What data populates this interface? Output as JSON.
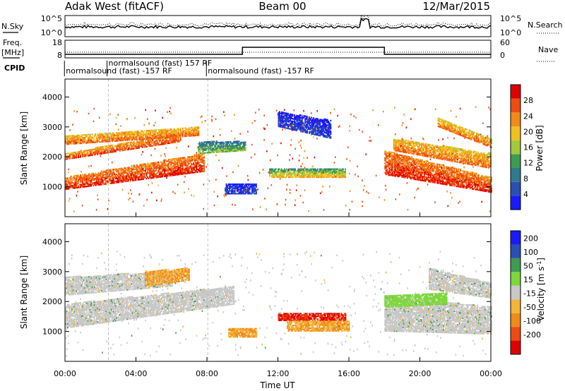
{
  "header": {
    "radar": "Adak West (fitACF)",
    "beam": "Beam 00",
    "date": "12/Mar/2015"
  },
  "noise_panel": {
    "left_label": "N.Sky",
    "right_label": "N.Search",
    "left_ticks": [
      "10^5",
      "10^0"
    ],
    "right_ticks": [
      "10^5",
      "10^0"
    ]
  },
  "freq_panel": {
    "left_label": "Freq.",
    "left_unit": "[MHz]",
    "right_label": "Nave",
    "left_ticks": [
      "18",
      "8"
    ],
    "right_ticks": [
      "60",
      "0"
    ],
    "freq_steps": [
      {
        "t": 0,
        "f": 10
      },
      {
        "t": 10,
        "f": 14
      },
      {
        "t": 18,
        "f": 10
      },
      {
        "t": 24,
        "f": 10
      }
    ]
  },
  "cpid": {
    "label": "CPID",
    "entries": [
      {
        "t": 0.05,
        "row": 2,
        "text": "normalsound (fast) -157 RF"
      },
      {
        "t": 2.45,
        "row": 1,
        "text": "normalsound (fast) 157 RF"
      },
      {
        "t": 8.05,
        "row": 2,
        "text": "normalsound (fast) -157 RF"
      }
    ]
  },
  "colors": {
    "power": [
      "#1a1aff",
      "#2a4fb5",
      "#2f7a8f",
      "#3e9c4f",
      "#a5c83b",
      "#f0c020",
      "#f28a1a",
      "#f04b10",
      "#e00000"
    ],
    "velocity": [
      "#e00000",
      "#f04b10",
      "#f28a1a",
      "#f3b437",
      "#c8c8c8",
      "#7dd83b",
      "#3e9c4f",
      "#2a4fb5",
      "#1a1aff"
    ],
    "grey": "#c8c8c8"
  },
  "chart_data": [
    {
      "type": "heatmap",
      "panel": "power",
      "ylabel": "Slant Range [km]",
      "ylim": [
        0,
        4600
      ],
      "y_ticks": [
        1000,
        2000,
        3000,
        4000
      ],
      "xlim": [
        0,
        24
      ],
      "x_ticks": [
        "00:00",
        "04:00",
        "08:00",
        "12:00",
        "16:00",
        "20:00",
        "00:00"
      ],
      "colorbar": {
        "label": "Power [dB]",
        "range": [
          0,
          32
        ],
        "ticks": [
          4,
          8,
          12,
          16,
          20,
          24,
          28
        ]
      },
      "bands": [
        {
          "t0": 0.0,
          "t1": 7.8,
          "r0a": 900,
          "r1a": 1300,
          "r0b": 1500,
          "r1b": 2100,
          "vmin": 22,
          "vmax": 32
        },
        {
          "t0": 0.0,
          "t1": 6.5,
          "r0a": 1900,
          "r1a": 2100,
          "r0b": 2500,
          "r1b": 2800,
          "vmin": 20,
          "vmax": 30
        },
        {
          "t0": 0.0,
          "t1": 7.5,
          "r0a": 2400,
          "r1a": 2700,
          "r0b": 2700,
          "r1b": 3000,
          "vmin": 18,
          "vmax": 28
        },
        {
          "t0": 7.5,
          "t1": 10.2,
          "r0a": 2100,
          "r1a": 2500,
          "r0b": 2200,
          "r1b": 2500,
          "vmin": 6,
          "vmax": 18
        },
        {
          "t0": 9.0,
          "t1": 10.8,
          "r0a": 750,
          "r1a": 1100,
          "r0b": 750,
          "r1b": 1100,
          "vmin": 2,
          "vmax": 8
        },
        {
          "t0": 11.5,
          "t1": 15.8,
          "r0a": 1300,
          "r1a": 1600,
          "r0b": 1300,
          "r1b": 1600,
          "vmin": 6,
          "vmax": 24
        },
        {
          "t0": 12.0,
          "t1": 15.0,
          "r0a": 3000,
          "r1a": 3500,
          "r0b": 2600,
          "r1b": 3200,
          "vmin": 2,
          "vmax": 8
        },
        {
          "t0": 18.0,
          "t1": 24.0,
          "r0a": 1400,
          "r1a": 2200,
          "r0b": 800,
          "r1b": 1300,
          "vmin": 22,
          "vmax": 32
        },
        {
          "t0": 18.5,
          "t1": 24.0,
          "r0a": 2200,
          "r1a": 2600,
          "r0b": 1600,
          "r1b": 2100,
          "vmin": 18,
          "vmax": 28
        },
        {
          "t0": 21.0,
          "t1": 24.0,
          "r0a": 3000,
          "r1a": 3300,
          "r0b": 2300,
          "r1b": 2600,
          "vmin": 16,
          "vmax": 28
        }
      ]
    },
    {
      "type": "heatmap",
      "panel": "velocity",
      "ylabel": "Slant Range [km]",
      "ylim": [
        0,
        4600
      ],
      "y_ticks": [
        1000,
        2000,
        3000,
        4000
      ],
      "xlim": [
        0,
        24
      ],
      "x_ticks": [
        "00:00",
        "04:00",
        "08:00",
        "12:00",
        "16:00",
        "20:00",
        "00:00"
      ],
      "xlabel": "Time UT",
      "colorbar": {
        "label": "Velocity [m s^-1]",
        "range": [
          -250,
          250
        ],
        "ticks": [
          200,
          100,
          50,
          15,
          -15,
          -50,
          -100,
          -200
        ]
      },
      "bands": [
        {
          "t0": 0.0,
          "t1": 9.5,
          "r0a": 1100,
          "r1a": 1900,
          "r0b": 1900,
          "r1b": 2500,
          "kind": "grey"
        },
        {
          "t0": 0.0,
          "t1": 6.0,
          "r0a": 2200,
          "r1a": 2800,
          "r0b": 2500,
          "r1b": 3000,
          "kind": "grey"
        },
        {
          "t0": 4.5,
          "t1": 7.0,
          "r0a": 2500,
          "r1a": 3000,
          "r0b": 2700,
          "r1b": 3100,
          "kind": "orange"
        },
        {
          "t0": 9.2,
          "t1": 10.8,
          "r0a": 800,
          "r1a": 1100,
          "r0b": 800,
          "r1b": 1100,
          "kind": "orange"
        },
        {
          "t0": 12.0,
          "t1": 15.8,
          "r0a": 1350,
          "r1a": 1600,
          "r0b": 1350,
          "r1b": 1600,
          "kind": "red"
        },
        {
          "t0": 12.5,
          "t1": 16.0,
          "r0a": 1000,
          "r1a": 1350,
          "r0b": 1000,
          "r1b": 1350,
          "kind": "orange"
        },
        {
          "t0": 18.0,
          "t1": 24.0,
          "r0a": 1000,
          "r1a": 2200,
          "r0b": 900,
          "r1b": 1800,
          "kind": "grey"
        },
        {
          "t0": 20.5,
          "t1": 24.0,
          "r0a": 2400,
          "r1a": 3100,
          "r0b": 2100,
          "r1b": 2600,
          "kind": "grey"
        },
        {
          "t0": 18.0,
          "t1": 21.5,
          "r0a": 1800,
          "r1a": 2200,
          "r0b": 1900,
          "r1b": 2300,
          "kind": "green"
        }
      ]
    }
  ]
}
